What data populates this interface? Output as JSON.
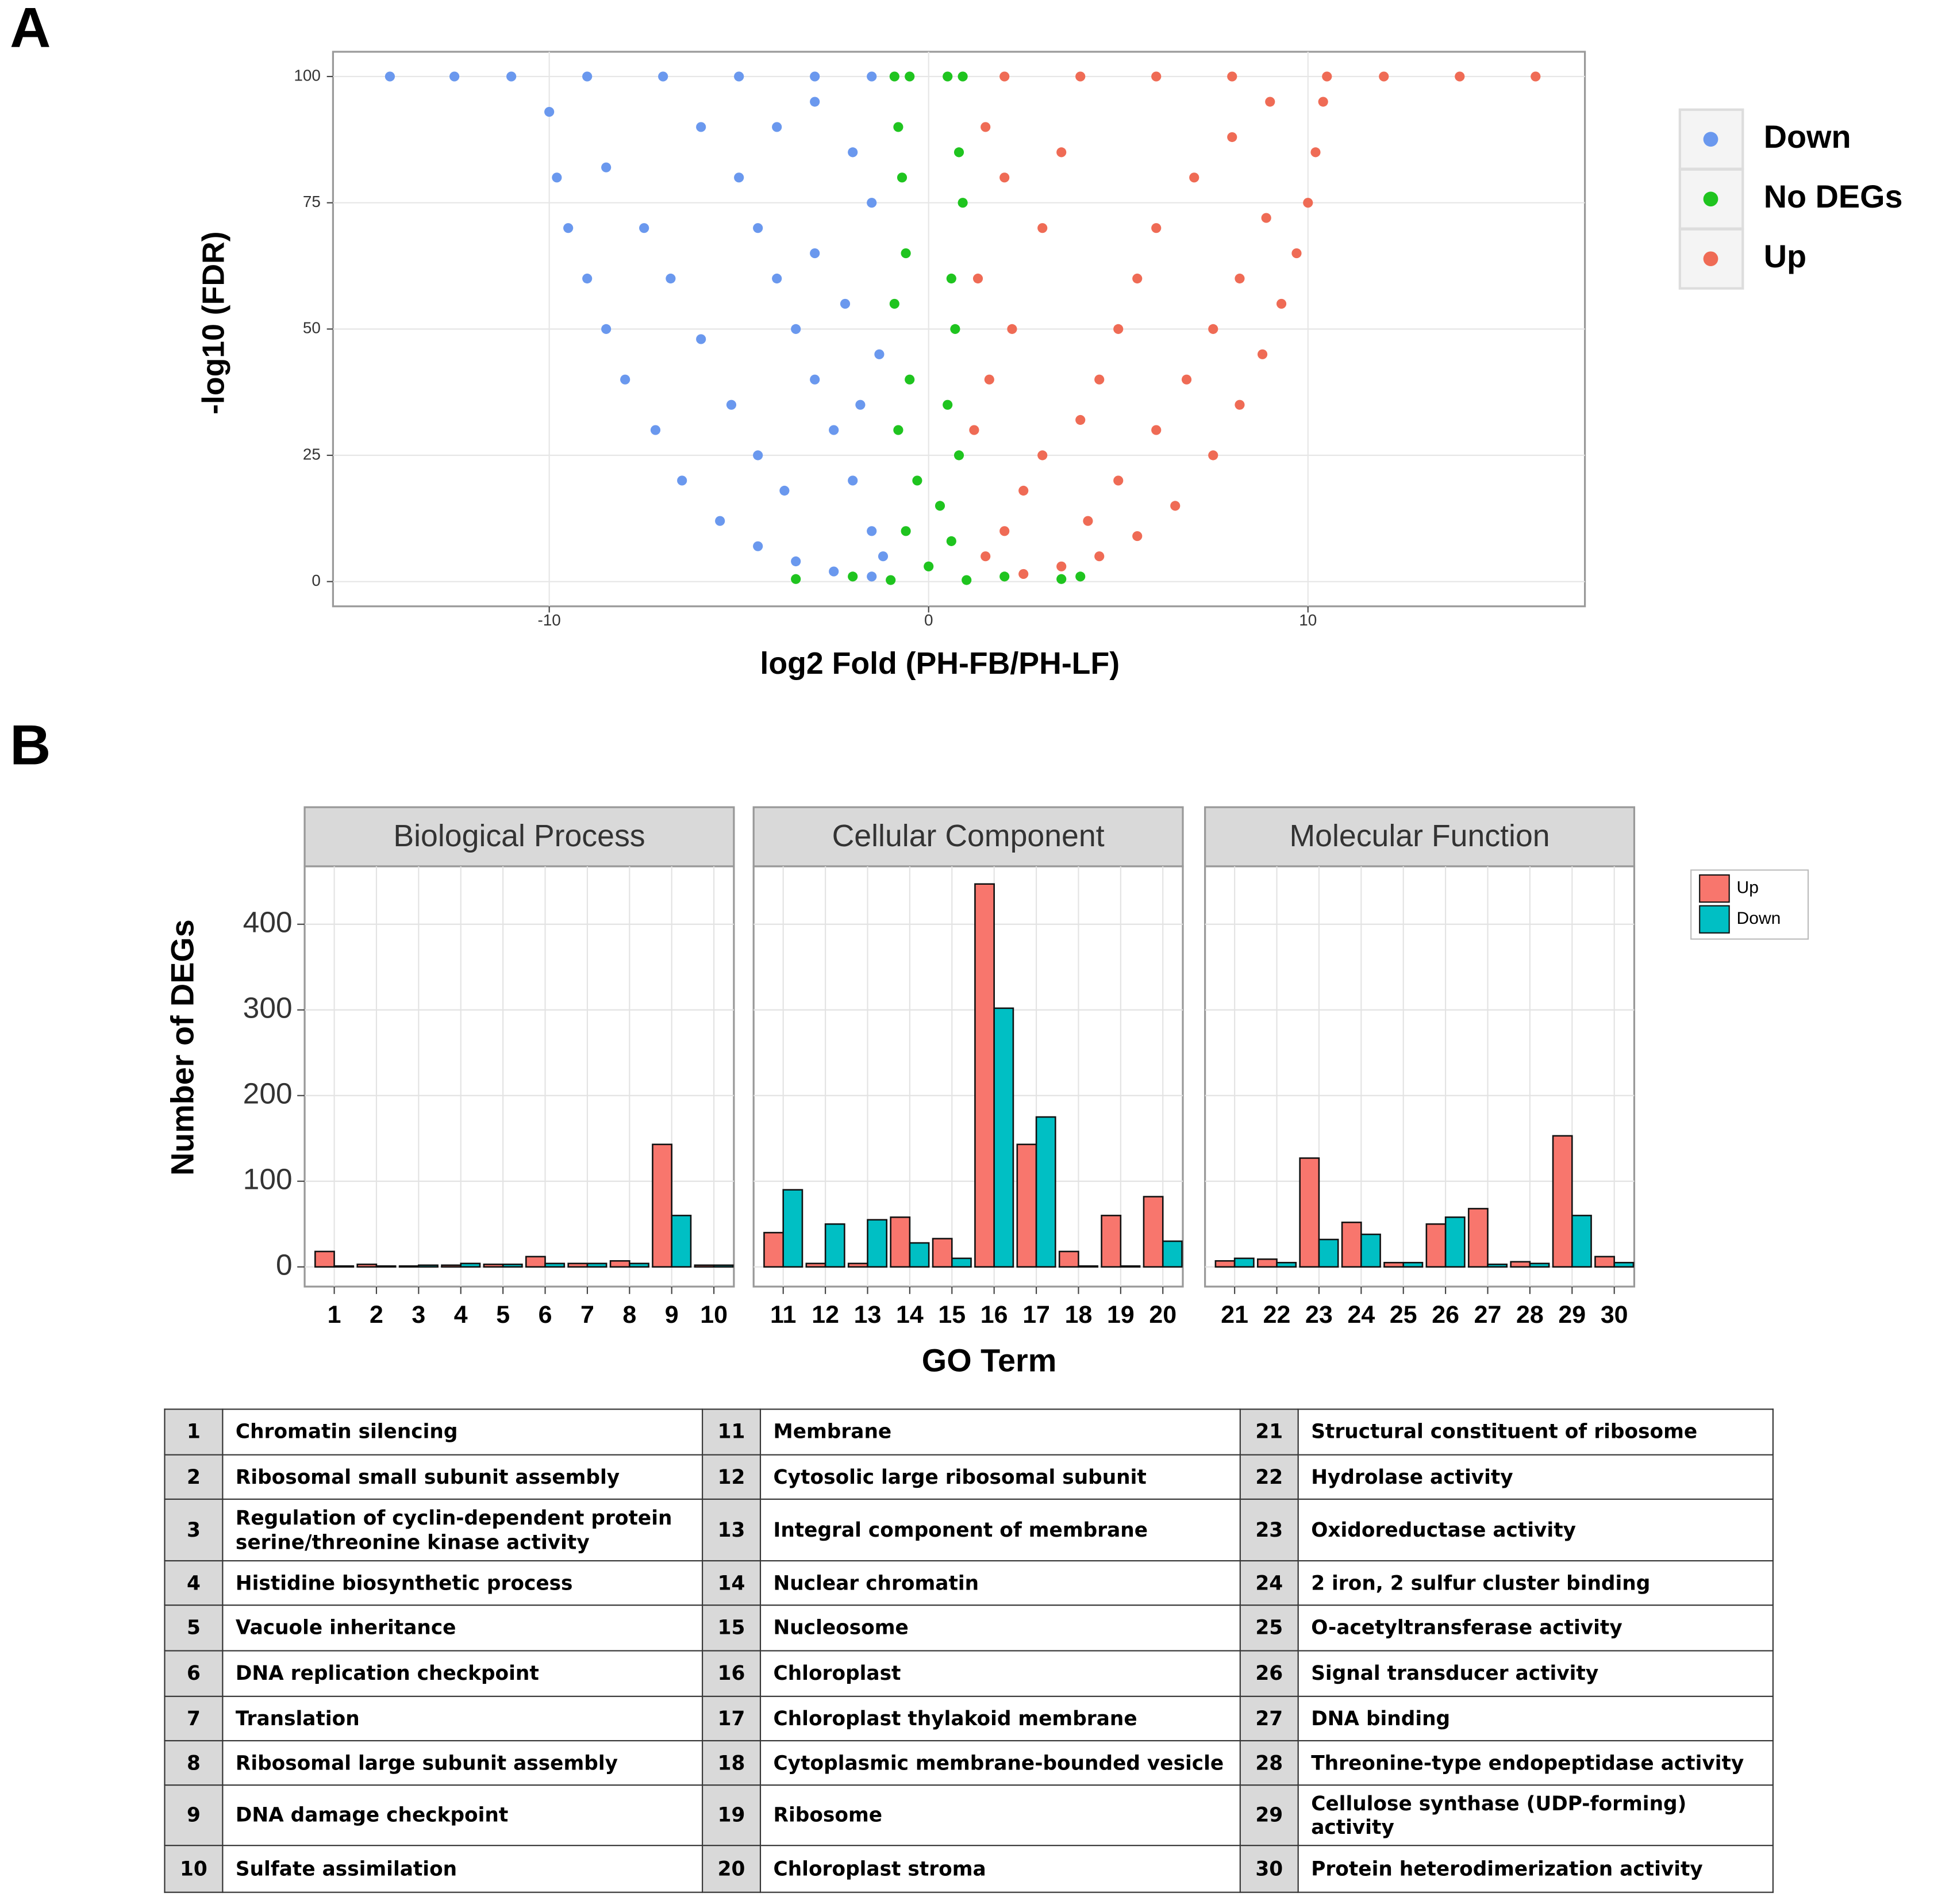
{
  "chart_data": [
    {
      "type": "scatter",
      "panel": "A",
      "y_label": "-log10 (FDR)",
      "x_label": "log2 Fold (PH-FB/PH-LF)",
      "xlim": [
        -15.7,
        17.3
      ],
      "ylim": [
        -4.9,
        104.9
      ],
      "xticks": [
        -10,
        0,
        10
      ],
      "yticks": [
        0,
        25,
        50,
        75,
        100
      ],
      "grid": true,
      "legend": "right",
      "series": [
        {
          "name": "Down",
          "color": "#6a98ee",
          "x": [
            -14.2,
            -12.5,
            -11,
            -9,
            -7,
            -5,
            -3,
            -1.5,
            -10,
            -9.8,
            -9.5,
            -9,
            -8.5,
            -8,
            -7.2,
            -6.5,
            -5.5,
            -4.5,
            -3.5,
            -2.5,
            -1.5,
            -8.5,
            -7.5,
            -6.8,
            -6,
            -5.2,
            -4.5,
            -3.8,
            -6,
            -5,
            -4.5,
            -4,
            -3.5,
            -3,
            -2.5,
            -2,
            -1.5,
            -1.2,
            -2,
            -1.5,
            -3,
            -2.2,
            -1.3,
            -1.8,
            -4,
            -3
          ],
          "values": [
            100,
            100,
            100,
            100,
            100,
            100,
            100,
            100,
            93,
            80,
            70,
            60,
            50,
            40,
            30,
            20,
            12,
            7,
            4,
            2,
            1,
            82,
            70,
            60,
            48,
            35,
            25,
            18,
            90,
            80,
            70,
            60,
            50,
            40,
            30,
            20,
            10,
            5,
            85,
            75,
            65,
            55,
            45,
            35,
            90,
            95
          ]
        },
        {
          "name": "No DEGs",
          "color": "#1fc41f",
          "x": [
            -0.9,
            -0.5,
            0.5,
            0.9,
            -0.8,
            -0.7,
            0.8,
            0.9,
            -0.6,
            0.6,
            -0.9,
            0.7,
            -0.5,
            0.5,
            -0.8,
            0.8,
            -0.3,
            0.3,
            -0.6,
            0.6,
            0,
            -2,
            2,
            -3.5,
            3.5,
            4,
            -1,
            1
          ],
          "values": [
            100,
            100,
            100,
            100,
            90,
            80,
            85,
            75,
            65,
            60,
            55,
            50,
            40,
            35,
            30,
            25,
            20,
            15,
            10,
            8,
            3,
            1,
            1,
            0.5,
            0.5,
            1,
            0.3,
            0.3
          ]
        },
        {
          "name": "Up",
          "color": "#ef6b55",
          "x": [
            16,
            14,
            12,
            10.5,
            8,
            6,
            4,
            2,
            10.4,
            10.2,
            10,
            9.7,
            9.3,
            8.8,
            8.2,
            7.5,
            6.5,
            5.5,
            4.5,
            3.5,
            2.5,
            8.9,
            8.2,
            7.5,
            6.8,
            6,
            5,
            4.2,
            9,
            8,
            7,
            6,
            5.5,
            5,
            4.5,
            4,
            3,
            2.5,
            2,
            1.5,
            1.5,
            2,
            3,
            1.3,
            2.2,
            1.6,
            3.5,
            1.2
          ],
          "values": [
            100,
            100,
            100,
            100,
            100,
            100,
            100,
            100,
            95,
            85,
            75,
            65,
            55,
            45,
            35,
            25,
            15,
            9,
            5,
            3,
            1.5,
            72,
            60,
            50,
            40,
            30,
            20,
            12,
            95,
            88,
            80,
            70,
            60,
            50,
            40,
            32,
            25,
            18,
            10,
            5,
            90,
            80,
            70,
            60,
            50,
            40,
            85,
            30
          ]
        }
      ]
    },
    {
      "type": "bar",
      "panel": "B",
      "y_label": "Number of DEGs",
      "x_label": "GO Term",
      "ylim": [
        -23,
        467.6
      ],
      "yticks": [
        0,
        100,
        200,
        300,
        400
      ],
      "grid": true,
      "legend": "right",
      "facets": [
        {
          "title": "Biological Process",
          "categories": [
            "1",
            "2",
            "3",
            "4",
            "5",
            "6",
            "7",
            "8",
            "9",
            "10"
          ]
        },
        {
          "title": "Cellular Component",
          "categories": [
            "11",
            "12",
            "13",
            "14",
            "15",
            "16",
            "17",
            "18",
            "19",
            "20"
          ]
        },
        {
          "title": "Molecular Function",
          "categories": [
            "21",
            "22",
            "23",
            "24",
            "25",
            "26",
            "27",
            "28",
            "29",
            "30"
          ]
        }
      ],
      "series": [
        {
          "name": "Up",
          "color": "#f8766d",
          "values": [
            18,
            3,
            1,
            2,
            3,
            12,
            4,
            7,
            143,
            2,
            40,
            4,
            4,
            58,
            33,
            447,
            143,
            18,
            60,
            82,
            7,
            9,
            127,
            52,
            5,
            50,
            68,
            6,
            153,
            12
          ]
        },
        {
          "name": "Down",
          "color": "#00bfc4",
          "values": [
            1,
            1,
            2,
            4,
            3,
            4,
            4,
            4,
            60,
            2,
            90,
            50,
            55,
            28,
            10,
            302,
            175,
            1,
            1,
            30,
            10,
            5,
            32,
            38,
            5,
            58,
            3,
            4,
            60,
            5
          ]
        }
      ]
    }
  ],
  "table": {
    "rows": [
      [
        1,
        "Chromatin silencing",
        11,
        "Membrane",
        21,
        "Structural constituent of ribosome"
      ],
      [
        2,
        "Ribosomal small subunit assembly",
        12,
        "Cytosolic large ribosomal subunit",
        22,
        "Hydrolase activity"
      ],
      [
        3,
        "Regulation of cyclin-dependent protein serine/threonine kinase activity",
        13,
        "Integral component of membrane",
        23,
        "Oxidoreductase activity"
      ],
      [
        4,
        "Histidine biosynthetic process",
        14,
        "Nuclear chromatin",
        24,
        "2 iron, 2 sulfur cluster binding"
      ],
      [
        5,
        "Vacuole inheritance",
        15,
        "Nucleosome",
        25,
        "O-acetyltransferase activity"
      ],
      [
        6,
        "DNA replication checkpoint",
        16,
        "Chloroplast",
        26,
        "Signal transducer activity"
      ],
      [
        7,
        "Translation",
        17,
        "Chloroplast thylakoid membrane",
        27,
        "DNA binding"
      ],
      [
        8,
        "Ribosomal large subunit assembly",
        18,
        "Cytoplasmic membrane-bounded vesicle",
        28,
        "Threonine-type endopeptidase activity"
      ],
      [
        9,
        "DNA damage checkpoint",
        19,
        "Ribosome",
        29,
        "Cellulose synthase (UDP-forming) activity"
      ],
      [
        10,
        "Sulfate assimilation",
        20,
        "Chloroplast stroma",
        30,
        "Protein heterodimerization activity"
      ]
    ]
  }
}
